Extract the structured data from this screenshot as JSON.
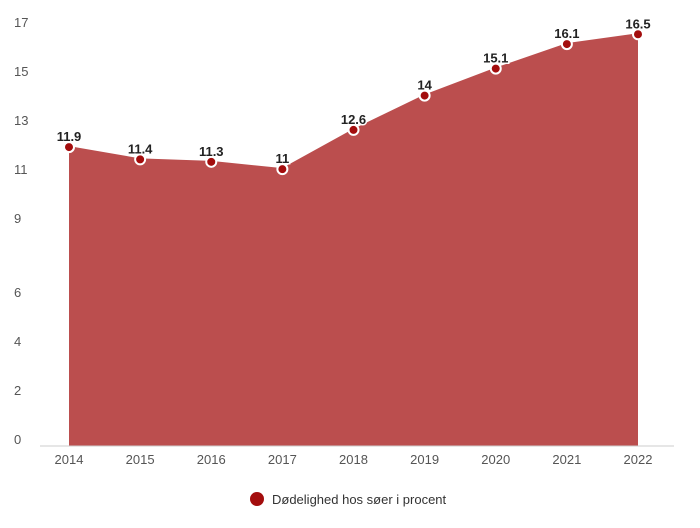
{
  "chart_data": {
    "type": "area",
    "categories": [
      "2014",
      "2015",
      "2016",
      "2017",
      "2018",
      "2019",
      "2020",
      "2021",
      "2022"
    ],
    "series": [
      {
        "name": "Dødelighed hos søer i procent",
        "values": [
          11.9,
          11.4,
          11.3,
          11,
          12.6,
          14,
          15.1,
          16.1,
          16.5
        ],
        "color": "#bb4e4e",
        "marker_color": "#a30d0d"
      }
    ],
    "data_labels": [
      "11.9",
      "11.4",
      "11.3",
      "11",
      "12.6",
      "14",
      "15.1",
      "16.1",
      "16.5"
    ],
    "y_ticks": [
      0,
      2,
      4,
      6,
      9,
      11,
      13,
      15,
      17
    ],
    "ylim": [
      0,
      17
    ],
    "grid": false,
    "legend_position": "bottom-center",
    "title": "",
    "xlabel": "",
    "ylabel": ""
  }
}
